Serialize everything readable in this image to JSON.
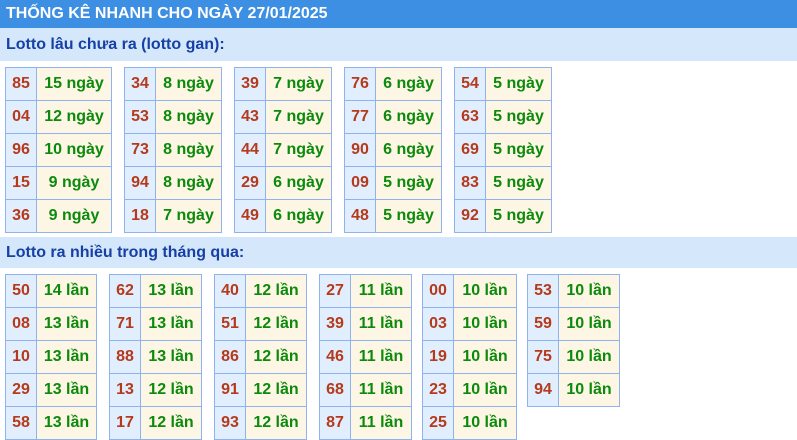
{
  "header": {
    "title": "THỐNG KÊ NHANH CHO NGÀY 27/01/2025"
  },
  "colors": {
    "header": "#3c8fe2",
    "section": "#d5e8fb",
    "number": "#b53a1b",
    "value": "#0b8a0b"
  },
  "gan": {
    "title": "Lotto lâu chưa ra (lotto gan):",
    "groups": [
      [
        [
          "85",
          "15 ngày"
        ],
        [
          "04",
          "12 ngày"
        ],
        [
          "96",
          "10 ngày"
        ],
        [
          "15",
          "9 ngày"
        ],
        [
          "36",
          "9 ngày"
        ]
      ],
      [
        [
          "34",
          "8 ngày"
        ],
        [
          "53",
          "8 ngày"
        ],
        [
          "73",
          "8 ngày"
        ],
        [
          "94",
          "8 ngày"
        ],
        [
          "18",
          "7 ngày"
        ]
      ],
      [
        [
          "39",
          "7 ngày"
        ],
        [
          "43",
          "7 ngày"
        ],
        [
          "44",
          "7 ngày"
        ],
        [
          "29",
          "6 ngày"
        ],
        [
          "49",
          "6 ngày"
        ]
      ],
      [
        [
          "76",
          "6 ngày"
        ],
        [
          "77",
          "6 ngày"
        ],
        [
          "90",
          "6 ngày"
        ],
        [
          "09",
          "5 ngày"
        ],
        [
          "48",
          "5 ngày"
        ]
      ],
      [
        [
          "54",
          "5 ngày"
        ],
        [
          "63",
          "5 ngày"
        ],
        [
          "69",
          "5 ngày"
        ],
        [
          "83",
          "5 ngày"
        ],
        [
          "92",
          "5 ngày"
        ]
      ]
    ]
  },
  "frequent": {
    "title": "Lotto ra nhiều trong tháng qua:",
    "groups": [
      [
        [
          "50",
          "14 lần"
        ],
        [
          "08",
          "13 lần"
        ],
        [
          "10",
          "13 lần"
        ],
        [
          "29",
          "13 lần"
        ],
        [
          "58",
          "13 lần"
        ]
      ],
      [
        [
          "62",
          "13 lần"
        ],
        [
          "71",
          "13 lần"
        ],
        [
          "88",
          "13 lần"
        ],
        [
          "13",
          "12 lần"
        ],
        [
          "17",
          "12 lần"
        ]
      ],
      [
        [
          "40",
          "12 lần"
        ],
        [
          "51",
          "12 lần"
        ],
        [
          "86",
          "12 lần"
        ],
        [
          "91",
          "12 lần"
        ],
        [
          "93",
          "12 lần"
        ]
      ],
      [
        [
          "27",
          "11 lần"
        ],
        [
          "39",
          "11 lần"
        ],
        [
          "46",
          "11 lần"
        ],
        [
          "68",
          "11 lần"
        ],
        [
          "87",
          "11 lần"
        ]
      ],
      [
        [
          "00",
          "10 lần"
        ],
        [
          "03",
          "10 lần"
        ],
        [
          "19",
          "10 lần"
        ],
        [
          "23",
          "10 lần"
        ],
        [
          "25",
          "10 lần"
        ]
      ],
      [
        [
          "53",
          "10 lần"
        ],
        [
          "59",
          "10 lần"
        ],
        [
          "75",
          "10 lần"
        ],
        [
          "94",
          "10 lần"
        ]
      ]
    ]
  }
}
